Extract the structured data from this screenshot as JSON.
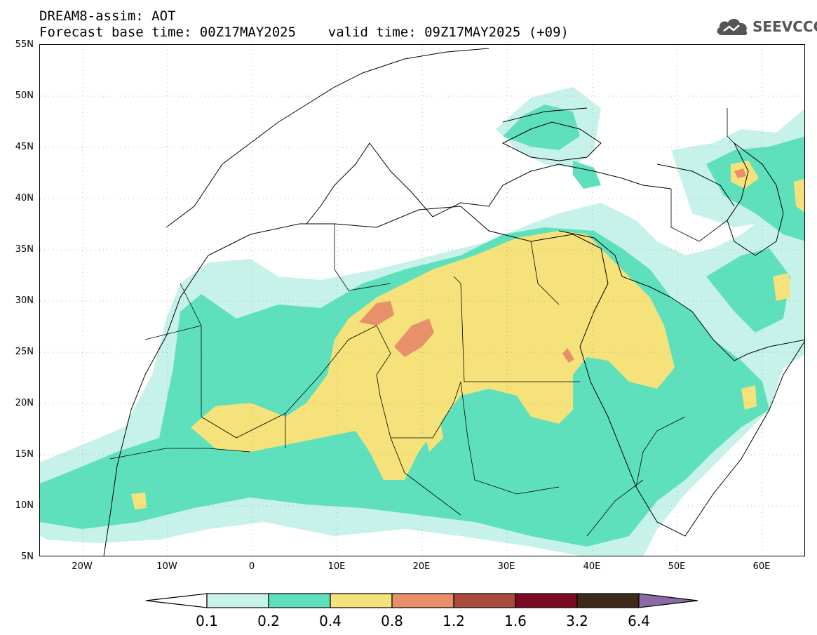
{
  "title": {
    "line1": "DREAM8-assim: AOT",
    "line2": "Forecast base time: 00Z17MAY2025    valid time: 09Z17MAY2025 (+09)"
  },
  "logo": {
    "text": "SEEVCCC"
  },
  "axes": {
    "lat_labels": [
      "55N",
      "50N",
      "45N",
      "40N",
      "35N",
      "30N",
      "25N",
      "20N",
      "15N",
      "10N",
      "5N"
    ],
    "lon_labels": [
      "20W",
      "10W",
      "0",
      "10E",
      "20E",
      "30E",
      "40E",
      "50E",
      "60E"
    ],
    "lat_range": [
      5,
      55
    ],
    "lon_range": [
      -25,
      65
    ]
  },
  "legend": {
    "levels": [
      "0.1",
      "0.2",
      "0.4",
      "0.8",
      "1.2",
      "1.6",
      "3.2",
      "6.4"
    ],
    "colors": [
      "#ffffff",
      "#c6f2ea",
      "#5fe0bc",
      "#f5e27a",
      "#e8906a",
      "#a84a3c",
      "#7a0a24",
      "#3d2a1a",
      "#8c6aa8"
    ]
  },
  "fill_colors": {
    "c1": "#c6f2ea",
    "c2": "#5fe0bc",
    "c3": "#f5e27a",
    "c4": "#e8906a"
  }
}
